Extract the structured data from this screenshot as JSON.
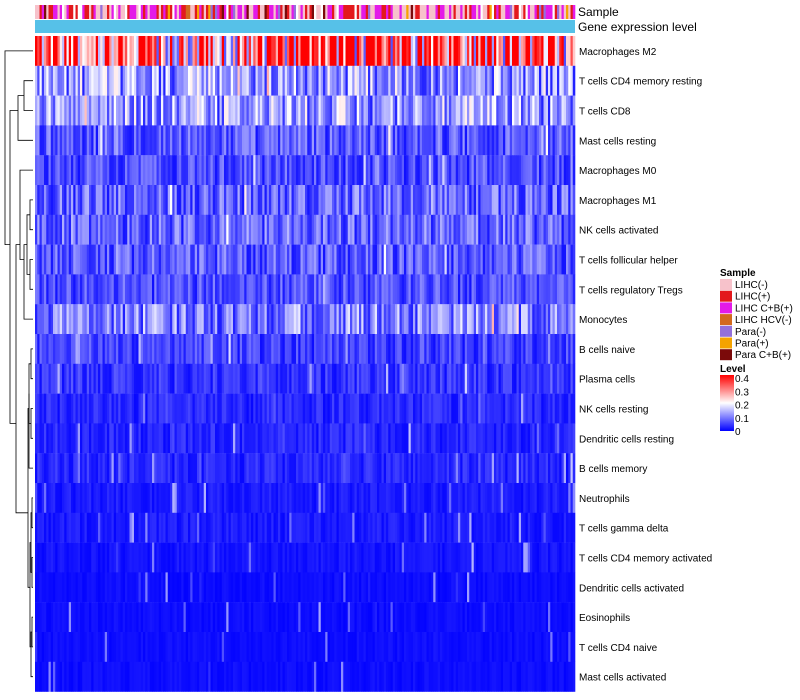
{
  "chart_data": {
    "type": "heatmap",
    "annotation_tracks": [
      "Sample",
      "Gene expression level"
    ],
    "rows": [
      {
        "label": "Macrophages M2",
        "mean": 0.3
      },
      {
        "label": "T cells CD4 memory resting",
        "mean": 0.12
      },
      {
        "label": "T cells CD8",
        "mean": 0.12
      },
      {
        "label": "Mast cells resting",
        "mean": 0.07
      },
      {
        "label": "Macrophages M0",
        "mean": 0.06
      },
      {
        "label": "Macrophages M1",
        "mean": 0.08
      },
      {
        "label": "NK cells activated",
        "mean": 0.08
      },
      {
        "label": "T cells follicular helper",
        "mean": 0.07
      },
      {
        "label": "T cells regulatory  Tregs",
        "mean": 0.06
      },
      {
        "label": "Monocytes",
        "mean": 0.1
      },
      {
        "label": "B cells naive",
        "mean": 0.05
      },
      {
        "label": "Plasma cells",
        "mean": 0.04
      },
      {
        "label": "NK cells resting",
        "mean": 0.03
      },
      {
        "label": "Dendritic cells resting",
        "mean": 0.03
      },
      {
        "label": "B cells memory",
        "mean": 0.03
      },
      {
        "label": "Neutrophils",
        "mean": 0.02
      },
      {
        "label": "T cells gamma delta",
        "mean": 0.02
      },
      {
        "label": "T cells CD4 memory activated",
        "mean": 0.015
      },
      {
        "label": "Dendritic cells activated",
        "mean": 0.01
      },
      {
        "label": "Eosinophils",
        "mean": 0.01
      },
      {
        "label": "T cells CD4 naive",
        "mean": 0.01
      },
      {
        "label": "Mast cells activated",
        "mean": 0.01
      }
    ],
    "n_samples": 240,
    "legend_sample": {
      "title": "Sample",
      "entries": [
        {
          "label": "LIHC(-)",
          "color": "#F7C2CB"
        },
        {
          "label": "LIHC(+)",
          "color": "#E3191C"
        },
        {
          "label": "LIHC C+B(+)",
          "color": "#E31AE8"
        },
        {
          "label": "LIHC HCV(-)",
          "color": "#D2691E"
        },
        {
          "label": "Para(-)",
          "color": "#9370DB"
        },
        {
          "label": "Para(+)",
          "color": "#F5A300"
        },
        {
          "label": "Para C+B(+)",
          "color": "#7B0A0A"
        }
      ]
    },
    "legend_level": {
      "title": "Level",
      "ticks": [
        "0.4",
        "0.3",
        "0.2",
        "0.1",
        "0"
      ],
      "range": [
        0,
        0.4
      ],
      "low_color": "#0000FF",
      "mid_color": "#FFFFFF",
      "high_color": "#FF0000"
    },
    "gene_expression_color": "#56C1E8"
  }
}
